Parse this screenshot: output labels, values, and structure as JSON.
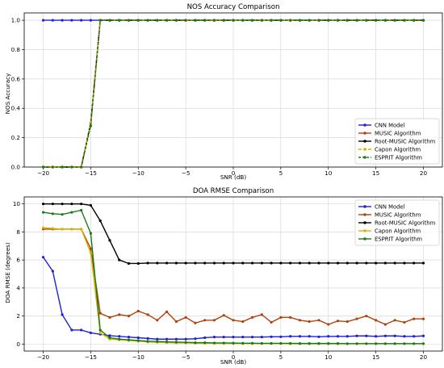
{
  "chart_data": [
    {
      "type": "line",
      "title": "NOS Accuracy Comparison",
      "xlabel": "SNR (dB)",
      "ylabel": "NOS Accuracy",
      "xlim": [
        -22,
        22
      ],
      "ylim": [
        0,
        1.05
      ],
      "xticks": [
        -20,
        -15,
        -10,
        -5,
        0,
        5,
        10,
        15,
        20
      ],
      "xtick_labels": [
        "−20",
        "−15",
        "−10",
        "−5",
        "0",
        "5",
        "10",
        "15",
        "20"
      ],
      "yticks": [
        0,
        0.2,
        0.4,
        0.6,
        0.8,
        1.0
      ],
      "ytick_labels": [
        "0.0",
        "0.2",
        "0.4",
        "0.6",
        "0.8",
        "1.0"
      ],
      "grid": true,
      "legend_position": "bottom-right",
      "x": [
        -20,
        -19,
        -18,
        -17,
        -16,
        -15,
        -14,
        -13,
        -12,
        -11,
        -10,
        -9,
        -8,
        -7,
        -6,
        -5,
        -4,
        -3,
        -2,
        -1,
        0,
        1,
        2,
        3,
        4,
        5,
        6,
        7,
        8,
        9,
        10,
        11,
        12,
        13,
        14,
        15,
        16,
        17,
        18,
        19,
        20
      ],
      "series": [
        {
          "name": "CNN Model",
          "color": "#1f1fd6",
          "marker": "circle",
          "dash": "",
          "values": [
            1,
            1,
            1,
            1,
            1,
            1,
            1,
            1,
            1,
            1,
            1,
            1,
            1,
            1,
            1,
            1,
            1,
            1,
            1,
            1,
            1,
            1,
            1,
            1,
            1,
            1,
            1,
            1,
            1,
            1,
            1,
            1,
            1,
            1,
            1,
            1,
            1,
            1,
            1,
            1,
            1
          ]
        },
        {
          "name": "MUSIC Algorithm",
          "color": "#b0420d",
          "marker": "circle",
          "dash": "",
          "values": [
            0,
            0,
            0,
            0,
            0,
            0.3,
            1,
            1,
            1,
            1,
            1,
            1,
            1,
            1,
            1,
            1,
            1,
            1,
            1,
            1,
            1,
            1,
            1,
            1,
            1,
            1,
            1,
            1,
            1,
            1,
            1,
            1,
            1,
            1,
            1,
            1,
            1,
            1,
            1,
            1,
            1
          ]
        },
        {
          "name": "Root-MUSIC Algorithm",
          "color": "#000000",
          "marker": "circle",
          "dash": "",
          "values": [
            0,
            0,
            0,
            0,
            0,
            0.3,
            1,
            1,
            1,
            1,
            1,
            1,
            1,
            1,
            1,
            1,
            1,
            1,
            1,
            1,
            1,
            1,
            1,
            1,
            1,
            1,
            1,
            1,
            1,
            1,
            1,
            1,
            1,
            1,
            1,
            1,
            1,
            1,
            1,
            1,
            1
          ]
        },
        {
          "name": "Capon Algorithm",
          "color": "#d6b400",
          "marker": "circle",
          "dash": "4,2",
          "values": [
            0,
            0,
            0,
            0,
            0,
            0.3,
            1,
            1,
            1,
            1,
            1,
            1,
            1,
            1,
            1,
            1,
            1,
            1,
            1,
            1,
            1,
            1,
            1,
            1,
            1,
            1,
            1,
            1,
            1,
            1,
            1,
            1,
            1,
            1,
            1,
            1,
            1,
            1,
            1,
            1,
            1
          ]
        },
        {
          "name": "ESPRIT Algorithm",
          "color": "#1a7a1a",
          "marker": "circle",
          "dash": "3,2",
          "values": [
            0,
            0,
            0,
            0,
            0,
            0.28,
            1,
            1,
            1,
            1,
            1,
            1,
            1,
            1,
            1,
            1,
            1,
            1,
            1,
            1,
            1,
            1,
            1,
            1,
            1,
            1,
            1,
            1,
            1,
            1,
            1,
            1,
            1,
            1,
            1,
            1,
            1,
            1,
            1,
            1,
            1
          ]
        }
      ]
    },
    {
      "type": "line",
      "title": "DOA RMSE Comparison",
      "xlabel": "SNR (dB)",
      "ylabel": "DOA RMSE (degrees)",
      "xlim": [
        -22,
        22
      ],
      "ylim": [
        -0.5,
        10.5
      ],
      "xticks": [
        -20,
        -15,
        -10,
        -5,
        0,
        5,
        10,
        15,
        20
      ],
      "xtick_labels": [
        "−20",
        "−15",
        "−10",
        "−5",
        "0",
        "5",
        "10",
        "15",
        "20"
      ],
      "yticks": [
        0,
        2,
        4,
        6,
        8,
        10
      ],
      "ytick_labels": [
        "0",
        "2",
        "4",
        "6",
        "8",
        "10"
      ],
      "grid": true,
      "legend_position": "top-right",
      "x": [
        -20,
        -19,
        -18,
        -17,
        -16,
        -15,
        -14,
        -13,
        -12,
        -11,
        -10,
        -9,
        -8,
        -7,
        -6,
        -5,
        -4,
        -3,
        -2,
        -1,
        0,
        1,
        2,
        3,
        4,
        5,
        6,
        7,
        8,
        9,
        10,
        11,
        12,
        13,
        14,
        15,
        16,
        17,
        18,
        19,
        20
      ],
      "series": [
        {
          "name": "CNN Model",
          "color": "#1f1fd6",
          "marker": "circle",
          "dash": "",
          "values": [
            6.2,
            5.2,
            2.1,
            1.0,
            1.0,
            0.8,
            0.7,
            0.6,
            0.55,
            0.5,
            0.45,
            0.4,
            0.35,
            0.35,
            0.35,
            0.35,
            0.38,
            0.45,
            0.5,
            0.5,
            0.5,
            0.5,
            0.5,
            0.5,
            0.52,
            0.52,
            0.55,
            0.55,
            0.55,
            0.52,
            0.55,
            0.55,
            0.55,
            0.58,
            0.58,
            0.55,
            0.58,
            0.58,
            0.55,
            0.55,
            0.58
          ]
        },
        {
          "name": "MUSIC Algorithm",
          "color": "#b0420d",
          "marker": "circle",
          "dash": "",
          "values": [
            8.2,
            8.2,
            8.2,
            8.2,
            8.2,
            6.8,
            2.2,
            1.9,
            2.1,
            2.0,
            2.35,
            2.1,
            1.7,
            2.3,
            1.6,
            1.9,
            1.5,
            1.7,
            1.7,
            2.05,
            1.7,
            1.6,
            1.9,
            2.1,
            1.55,
            1.9,
            1.9,
            1.7,
            1.6,
            1.7,
            1.4,
            1.65,
            1.6,
            1.8,
            2.0,
            1.7,
            1.4,
            1.7,
            1.55,
            1.8,
            1.8
          ]
        },
        {
          "name": "Root-MUSIC Algorithm",
          "color": "#000000",
          "marker": "circle",
          "dash": "",
          "values": [
            10.0,
            10.0,
            10.0,
            10.0,
            10.0,
            9.9,
            8.8,
            7.4,
            6.0,
            5.75,
            5.75,
            5.78,
            5.78,
            5.78,
            5.78,
            5.78,
            5.78,
            5.78,
            5.78,
            5.78,
            5.78,
            5.78,
            5.78,
            5.78,
            5.78,
            5.78,
            5.78,
            5.78,
            5.78,
            5.78,
            5.78,
            5.78,
            5.78,
            5.78,
            5.78,
            5.78,
            5.78,
            5.78,
            5.78,
            5.78,
            5.78
          ]
        },
        {
          "name": "Capon Algorithm",
          "color": "#d6b400",
          "marker": "circle",
          "dash": "",
          "values": [
            8.3,
            8.25,
            8.2,
            8.2,
            8.2,
            6.5,
            0.8,
            0.35,
            0.3,
            0.25,
            0.2,
            0.15,
            0.12,
            0.1,
            0.08,
            0.08,
            0.06,
            0.05,
            0.05,
            0.04,
            0.04,
            0.03,
            0.03,
            0.03,
            0.03,
            0.03,
            0.02,
            0.02,
            0.02,
            0.02,
            0.02,
            0.02,
            0.02,
            0.02,
            0.02,
            0.02,
            0.02,
            0.02,
            0.02,
            0.02,
            0.02
          ]
        },
        {
          "name": "ESPRIT Algorithm",
          "color": "#1a7a1a",
          "marker": "circle",
          "dash": "",
          "values": [
            9.4,
            9.3,
            9.25,
            9.4,
            9.55,
            7.9,
            1.0,
            0.45,
            0.35,
            0.3,
            0.25,
            0.2,
            0.18,
            0.16,
            0.14,
            0.12,
            0.1,
            0.1,
            0.08,
            0.08,
            0.07,
            0.06,
            0.06,
            0.05,
            0.05,
            0.05,
            0.05,
            0.04,
            0.04,
            0.04,
            0.04,
            0.04,
            0.03,
            0.03,
            0.03,
            0.03,
            0.03,
            0.03,
            0.03,
            0.03,
            0.03
          ]
        }
      ]
    }
  ]
}
